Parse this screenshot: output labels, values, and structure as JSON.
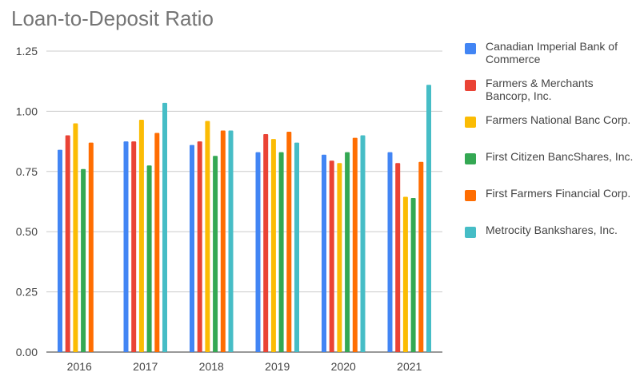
{
  "chart_data": {
    "type": "bar",
    "title": "Loan-to-Deposit Ratio",
    "categories": [
      "2016",
      "2017",
      "2018",
      "2019",
      "2020",
      "2021"
    ],
    "ylim": [
      0,
      1.25
    ],
    "yticks": [
      "0.00",
      "0.25",
      "0.50",
      "0.75",
      "1.00",
      "1.25"
    ],
    "grid": true,
    "legend_position": "right",
    "series": [
      {
        "name": "Canadian Imperial Bank of Commerce",
        "color": "#4285f4",
        "values": [
          0.84,
          0.875,
          0.86,
          0.83,
          0.82,
          0.83
        ]
      },
      {
        "name": "Farmers & Merchants Bancorp, Inc.",
        "color": "#ea4335",
        "values": [
          0.9,
          0.875,
          0.875,
          0.905,
          0.795,
          0.785
        ]
      },
      {
        "name": "Farmers National Banc Corp.",
        "color": "#fbbc04",
        "values": [
          0.95,
          0.965,
          0.96,
          0.885,
          0.785,
          0.645
        ]
      },
      {
        "name": "First Citizen BancShares, Inc.",
        "color": "#34a853",
        "values": [
          0.76,
          0.775,
          0.815,
          0.83,
          0.83,
          0.64
        ]
      },
      {
        "name": "First Farmers Financial Corp.",
        "color": "#ff6d01",
        "values": [
          0.87,
          0.91,
          0.92,
          0.915,
          0.89,
          0.79
        ]
      },
      {
        "name": "Metrocity Bankshares, Inc.",
        "color": "#46bdc6",
        "values": [
          null,
          1.035,
          0.92,
          0.87,
          0.9,
          1.11
        ]
      }
    ]
  }
}
